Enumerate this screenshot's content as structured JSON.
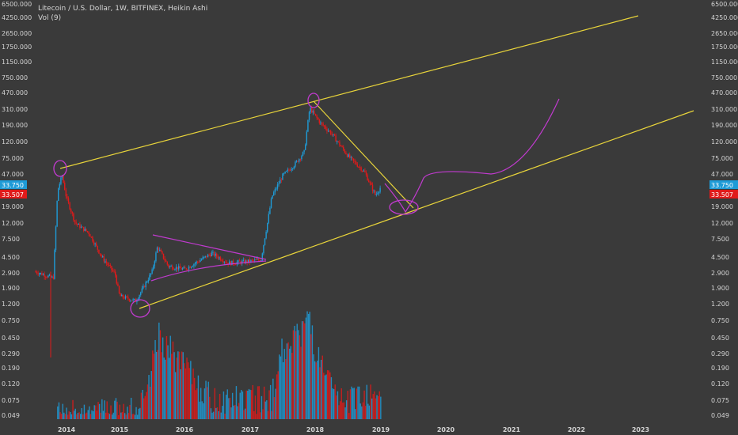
{
  "header": {
    "title": "Litecoin / U.S. Dollar, 1W, BITFINEX, Heikin Ashi",
    "volume_label": "Vol (9)"
  },
  "colors": {
    "background": "#3a3a3a",
    "up": "#1e9bd7",
    "down": "#e01a1a",
    "trendline": "#e8d43a",
    "drawing": "#c23ad0",
    "price_badge_blue": "#1e9bd7",
    "price_badge_red": "#e01a1a"
  },
  "chart_data": {
    "type": "candlestick",
    "yscale": "log",
    "y_ticks": [
      "6500.000",
      "4250.000",
      "2650.000",
      "1750.000",
      "1150.000",
      "750.000",
      "470.000",
      "310.000",
      "190.000",
      "120.000",
      "75.000",
      "47.000",
      "19.000",
      "12.000",
      "7.500",
      "4.500",
      "2.900",
      "1.900",
      "1.200",
      "0.750",
      "0.450",
      "0.290",
      "0.190",
      "0.120",
      "0.075",
      "0.049"
    ],
    "x_ticks": [
      "2014",
      "2015",
      "2016",
      "2017",
      "2018",
      "2019",
      "2020",
      "2021",
      "2022",
      "2023"
    ],
    "price_badges": [
      {
        "label": "33.750",
        "color": "#1e9bd7"
      },
      {
        "label": "33.507",
        "color": "#e01a1a"
      }
    ],
    "approx_price_path": [
      {
        "date": "2013-06",
        "price": 3.0
      },
      {
        "date": "2013-10",
        "price": 2.5
      },
      {
        "date": "2013-11",
        "price": 30
      },
      {
        "date": "2013-12",
        "price": 45
      },
      {
        "date": "2014-01",
        "price": 24
      },
      {
        "date": "2014-03",
        "price": 12
      },
      {
        "date": "2014-06",
        "price": 9
      },
      {
        "date": "2014-09",
        "price": 4.5
      },
      {
        "date": "2014-12",
        "price": 2.8
      },
      {
        "date": "2015-01",
        "price": 1.5
      },
      {
        "date": "2015-04",
        "price": 1.3
      },
      {
        "date": "2015-07",
        "price": 3.0
      },
      {
        "date": "2015-08",
        "price": 6.0
      },
      {
        "date": "2015-10",
        "price": 3.5
      },
      {
        "date": "2016-01",
        "price": 3.2
      },
      {
        "date": "2016-06",
        "price": 5.0
      },
      {
        "date": "2016-09",
        "price": 3.8
      },
      {
        "date": "2017-01",
        "price": 4.0
      },
      {
        "date": "2017-03",
        "price": 4.2
      },
      {
        "date": "2017-05",
        "price": 25
      },
      {
        "date": "2017-07",
        "price": 45
      },
      {
        "date": "2017-09",
        "price": 60
      },
      {
        "date": "2017-11",
        "price": 90
      },
      {
        "date": "2017-12",
        "price": 320
      },
      {
        "date": "2018-02",
        "price": 200
      },
      {
        "date": "2018-04",
        "price": 150
      },
      {
        "date": "2018-07",
        "price": 80
      },
      {
        "date": "2018-10",
        "price": 50
      },
      {
        "date": "2018-12",
        "price": 26
      },
      {
        "date": "2019-01",
        "price": 33
      }
    ],
    "approx_volume": [
      {
        "date": "2013-11",
        "value": 0.05
      },
      {
        "date": "2014-01",
        "value": 0.053
      },
      {
        "date": "2014-06",
        "value": 0.052
      },
      {
        "date": "2015-01",
        "value": 0.06
      },
      {
        "date": "2015-06",
        "value": 0.07
      },
      {
        "date": "2015-08",
        "value": 0.5
      },
      {
        "date": "2016-06",
        "value": 0.075
      },
      {
        "date": "2017-05",
        "value": 0.08
      },
      {
        "date": "2017-07",
        "value": 0.35
      },
      {
        "date": "2017-10",
        "value": 0.5
      },
      {
        "date": "2017-12",
        "value": 0.8
      },
      {
        "date": "2018-01",
        "value": 0.3
      },
      {
        "date": "2018-05",
        "value": 0.07
      },
      {
        "date": "2018-11",
        "value": 0.09
      }
    ]
  }
}
